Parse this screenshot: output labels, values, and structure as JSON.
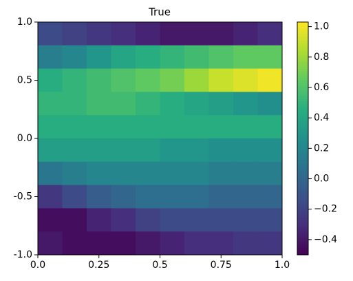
{
  "chart_data": {
    "type": "heatmap",
    "title": "True",
    "colormap": "viridis",
    "xlim": [
      0,
      1
    ],
    "ylim": [
      -1,
      1
    ],
    "xticks": [
      {
        "value": 0,
        "label": "0.0"
      },
      0.25,
      0.5,
      0.75,
      {
        "value": 1,
        "label": "1.0"
      }
    ],
    "yticks": [
      {
        "value": 1,
        "label": "1.0"
      },
      0.5,
      {
        "value": 0,
        "label": "0.0"
      },
      -0.5,
      {
        "value": -1,
        "label": "-1.0"
      }
    ],
    "clim": [
      -0.5,
      1.03
    ],
    "cticks": [
      {
        "value": -0.4,
        "label": "−0.4"
      },
      {
        "value": -0.2,
        "label": "−0.2"
      },
      {
        "value": 0,
        "label": "0.0"
      },
      0.2,
      0.4,
      0.6,
      0.8,
      {
        "value": 1,
        "label": "1.0"
      }
    ],
    "z": [
      [
        -0.15,
        -0.2,
        -0.25,
        -0.3,
        -0.35,
        -0.4,
        -0.4,
        -0.4,
        -0.35,
        -0.3
      ],
      [
        0.15,
        0.2,
        0.3,
        0.4,
        0.45,
        0.5,
        0.55,
        0.6,
        0.65,
        0.65
      ],
      [
        0.45,
        0.5,
        0.55,
        0.6,
        0.65,
        0.7,
        0.8,
        0.9,
        0.95,
        1.0
      ],
      [
        0.5,
        0.5,
        0.55,
        0.55,
        0.5,
        0.45,
        0.4,
        0.35,
        0.3,
        0.25
      ],
      [
        0.45,
        0.45,
        0.45,
        0.45,
        0.45,
        0.45,
        0.45,
        0.45,
        0.45,
        0.45
      ],
      [
        0.35,
        0.35,
        0.35,
        0.35,
        0.35,
        0.3,
        0.3,
        0.25,
        0.25,
        0.25
      ],
      [
        0.1,
        0.15,
        0.2,
        0.2,
        0.2,
        0.2,
        0.2,
        0.15,
        0.15,
        0.15
      ],
      [
        -0.25,
        -0.15,
        -0.05,
        0.0,
        0.05,
        0.05,
        0.05,
        0.0,
        0.0,
        0.0
      ],
      [
        -0.45,
        -0.45,
        -0.35,
        -0.3,
        -0.2,
        -0.15,
        -0.15,
        -0.15,
        -0.15,
        -0.15
      ],
      [
        -0.4,
        -0.45,
        -0.45,
        -0.45,
        -0.4,
        -0.35,
        -0.3,
        -0.3,
        -0.25,
        -0.25
      ]
    ]
  }
}
